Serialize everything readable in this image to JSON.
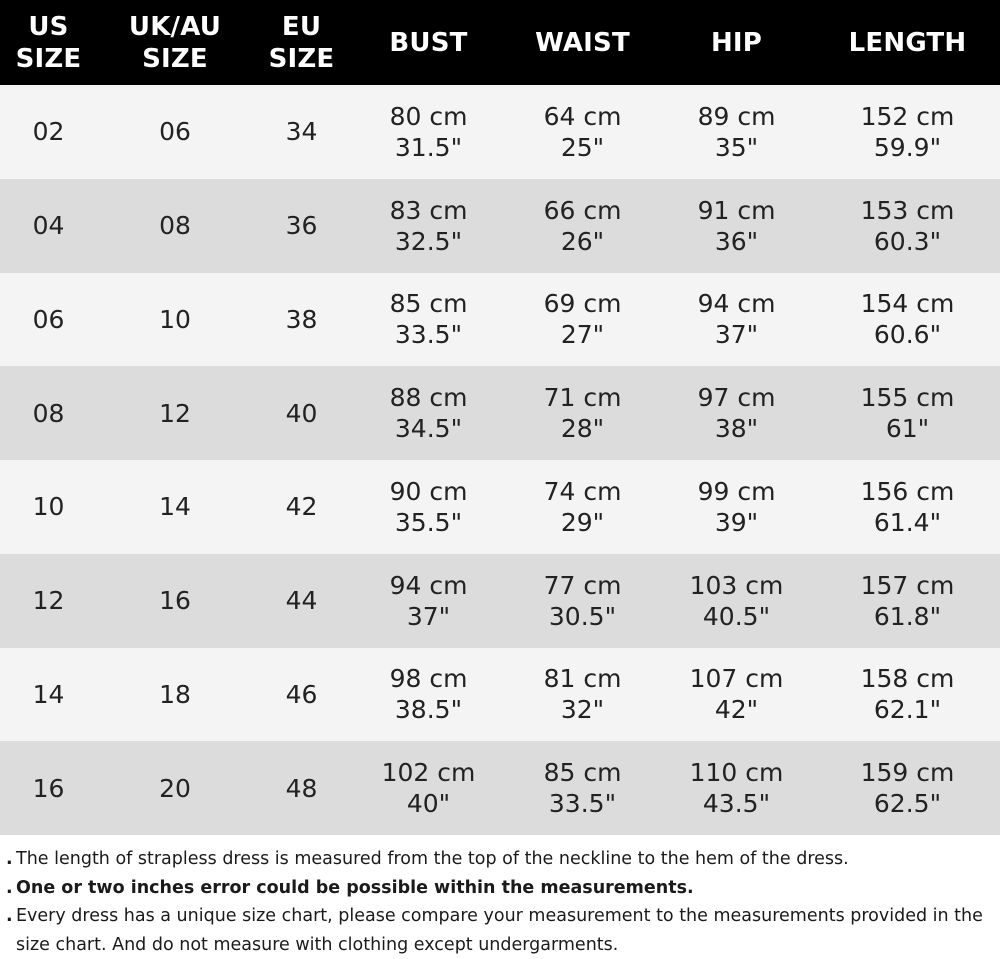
{
  "header": [
    {
      "line1": "US",
      "line2": "SIZE"
    },
    {
      "line1": "UK/AU",
      "line2": "SIZE"
    },
    {
      "line1": "EU",
      "line2": "SIZE"
    },
    {
      "line1": "BUST",
      "line2": ""
    },
    {
      "line1": "WAIST",
      "line2": ""
    },
    {
      "line1": "HIP",
      "line2": ""
    },
    {
      "line1": "LENGTH",
      "line2": ""
    }
  ],
  "rows": [
    {
      "us": "02",
      "uk": "06",
      "eu": "34",
      "bust_cm": "80 cm",
      "bust_in": "31.5\"",
      "waist_cm": "64 cm",
      "waist_in": "25\"",
      "hip_cm": "89 cm",
      "hip_in": "35\"",
      "length_cm": "152 cm",
      "length_in": "59.9\""
    },
    {
      "us": "04",
      "uk": "08",
      "eu": "36",
      "bust_cm": "83 cm",
      "bust_in": "32.5\"",
      "waist_cm": "66 cm",
      "waist_in": "26\"",
      "hip_cm": "91 cm",
      "hip_in": "36\"",
      "length_cm": "153 cm",
      "length_in": "60.3\""
    },
    {
      "us": "06",
      "uk": "10",
      "eu": "38",
      "bust_cm": "85 cm",
      "bust_in": "33.5\"",
      "waist_cm": "69 cm",
      "waist_in": "27\"",
      "hip_cm": "94 cm",
      "hip_in": "37\"",
      "length_cm": "154 cm",
      "length_in": "60.6\""
    },
    {
      "us": "08",
      "uk": "12",
      "eu": "40",
      "bust_cm": "88 cm",
      "bust_in": "34.5\"",
      "waist_cm": "71 cm",
      "waist_in": "28\"",
      "hip_cm": "97 cm",
      "hip_in": "38\"",
      "length_cm": "155 cm",
      "length_in": "61\""
    },
    {
      "us": "10",
      "uk": "14",
      "eu": "42",
      "bust_cm": "90 cm",
      "bust_in": "35.5\"",
      "waist_cm": "74 cm",
      "waist_in": "29\"",
      "hip_cm": "99 cm",
      "hip_in": "39\"",
      "length_cm": "156 cm",
      "length_in": "61.4\""
    },
    {
      "us": "12",
      "uk": "16",
      "eu": "44",
      "bust_cm": "94 cm",
      "bust_in": "37\"",
      "waist_cm": "77 cm",
      "waist_in": "30.5\"",
      "hip_cm": "103 cm",
      "hip_in": "40.5\"",
      "length_cm": "157 cm",
      "length_in": "61.8\""
    },
    {
      "us": "14",
      "uk": "18",
      "eu": "46",
      "bust_cm": "98 cm",
      "bust_in": "38.5\"",
      "waist_cm": "81 cm",
      "waist_in": "32\"",
      "hip_cm": "107 cm",
      "hip_in": "42\"",
      "length_cm": "158 cm",
      "length_in": "62.1\""
    },
    {
      "us": "16",
      "uk": "20",
      "eu": "48",
      "bust_cm": "102 cm",
      "bust_in": "40\"",
      "waist_cm": "85 cm",
      "waist_in": "33.5\"",
      "hip_cm": "110 cm",
      "hip_in": "43.5\"",
      "length_cm": "159 cm",
      "length_in": "62.5\""
    }
  ],
  "notes": [
    {
      "bullet": ".",
      "text": "The length of strapless dress is measured from the top of the neckline to the hem of the dress.",
      "bold": false
    },
    {
      "bullet": ".",
      "text": "One or two inches error could be possible within the measurements.",
      "bold": true
    },
    {
      "bullet": ".",
      "text": "Every dress has a unique size chart, please compare your measurement to the measurements provided in the size chart. And do not measure with clothing except undergarments.",
      "bold": false
    }
  ],
  "colors": {
    "header_bg": "#000000",
    "header_text": "#ffffff",
    "row_light": "#f4f4f4",
    "row_dark": "#dcdcdc"
  }
}
